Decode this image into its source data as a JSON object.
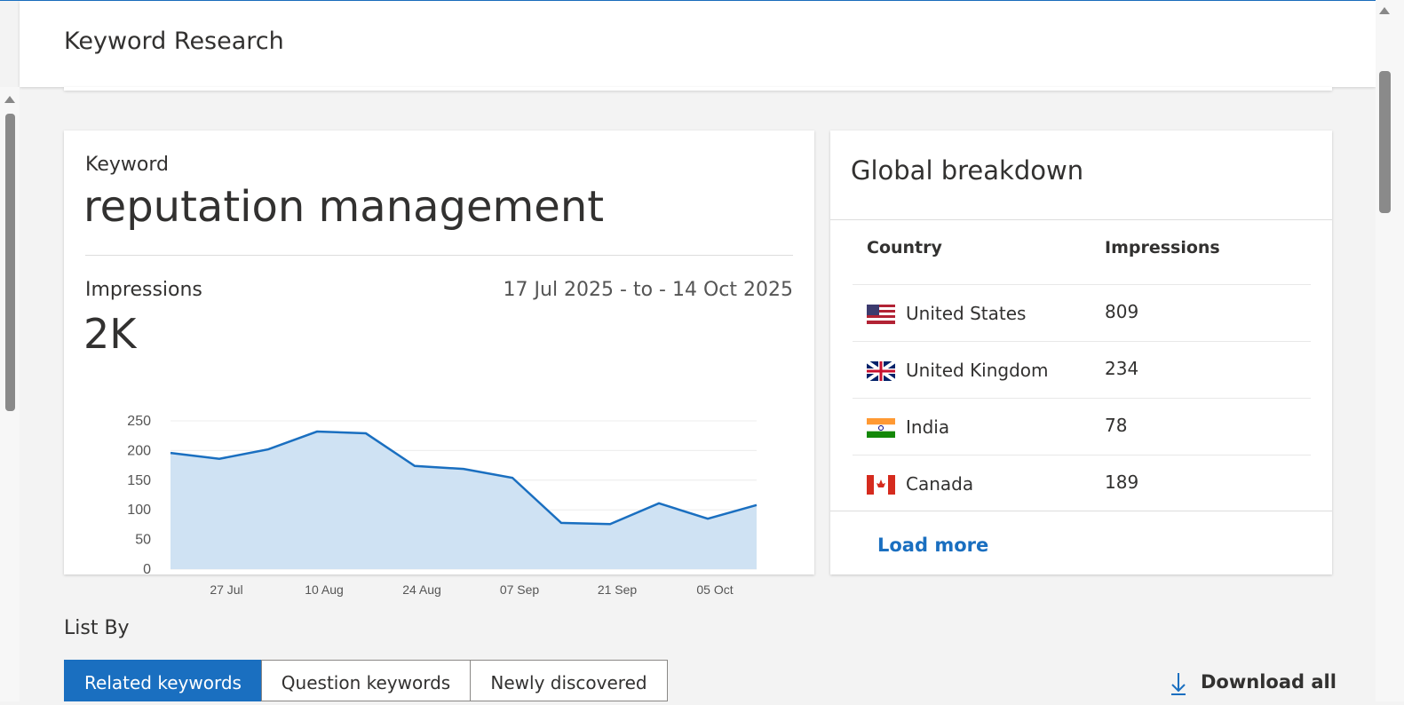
{
  "header": {
    "title": "Keyword Research"
  },
  "keyword_card": {
    "label": "Keyword",
    "keyword": "reputation management",
    "metric_label": "Impressions",
    "metric_value": "2K",
    "date_range": "17 Jul 2025 - to - 14 Oct 2025",
    "chart": {
      "type": "area",
      "values": [
        196,
        186,
        202,
        232,
        229,
        174,
        169,
        154,
        78,
        76,
        111,
        85,
        108
      ],
      "color": "#1a6fc0",
      "fill": "#cfe2f3",
      "xtick_labels": [
        "27 Jul",
        "10 Aug",
        "24 Aug",
        "07 Sep",
        "21 Sep",
        "05 Oct"
      ],
      "ylim": [
        0,
        250
      ],
      "yticks": [
        0,
        50,
        100,
        150,
        200,
        250
      ],
      "grid": true
    }
  },
  "breakdown": {
    "title": "Global breakdown",
    "columns": [
      "Country",
      "Impressions"
    ],
    "rows": [
      {
        "country": "United States",
        "impressions": 809
      },
      {
        "country": "United Kingdom",
        "impressions": 234
      },
      {
        "country": "India",
        "impressions": 78
      },
      {
        "country": "Canada",
        "impressions": 189
      }
    ],
    "load_more": "Load more"
  },
  "list_by": {
    "label": "List By",
    "tabs": [
      "Related keywords",
      "Question keywords",
      "Newly discovered"
    ],
    "download": "Download all"
  }
}
